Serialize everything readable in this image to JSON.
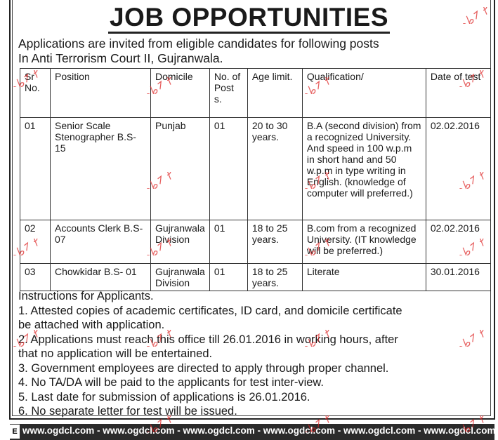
{
  "title": "JOB OPPORTUNITIES",
  "intro": [
    "Applications are invited from eligible candidates for following posts",
    "In Anti Terrorism Court II, Gujranwala."
  ],
  "table": {
    "headers": [
      "Sr No.",
      "Position",
      "Domicile",
      "No. of Post s.",
      "Age limit.",
      "Qualification/",
      "Date of test"
    ],
    "rows": [
      [
        "01",
        "Senior Scale Stenographer B.S-15",
        "Punjab",
        "01",
        "20 to 30 years.",
        "B.A (second division) from a recognized University. And speed in 100 w.p.m in short hand and 50 w.p.m in type writing in English. (knowledge of computer will preferred.)",
        "02.02.2016"
      ],
      [
        "02",
        "Accounts Clerk B.S-07",
        "Gujranwala Division",
        "01",
        "18 to 25 years.",
        "B.com from a recognized University. (IT knowledge will be preferred.)",
        "02.02.2016"
      ],
      [
        "03",
        "Chowkidar B.S- 01",
        "Gujranwala Division",
        "01",
        "18 to 25 years.",
        "Literate",
        "30.01.2016"
      ]
    ]
  },
  "instructions": {
    "heading": "Instructions for Applicants.",
    "lines": [
      "1.  Attested copies of academic certificates, ID card, and domicile certificate",
      "be attached with application.",
      "2.  Applications must reach this office till 26.01.2016 in working hours, after",
      "that no application will be entertained.",
      "3.  Government employees are directed to apply through proper channel.",
      "4.  No TA/DA will be paid to the applicants for test inter-view.",
      "5.  Last date for submission of applications is 26.01.2016.",
      "6.  No separate letter for test will be issued."
    ]
  },
  "footer": {
    "side_letter": "E",
    "text": "www.ogdcl.com - www.ogdcl.com - www.ogdcl.com - www.ogdcl.com - www.ogdcl.com - www.ogdcl.com -"
  },
  "watermark": "Jobz.pk",
  "colors": {
    "watermark": "#dd2222",
    "footer_bg": "#2b2b2b"
  }
}
